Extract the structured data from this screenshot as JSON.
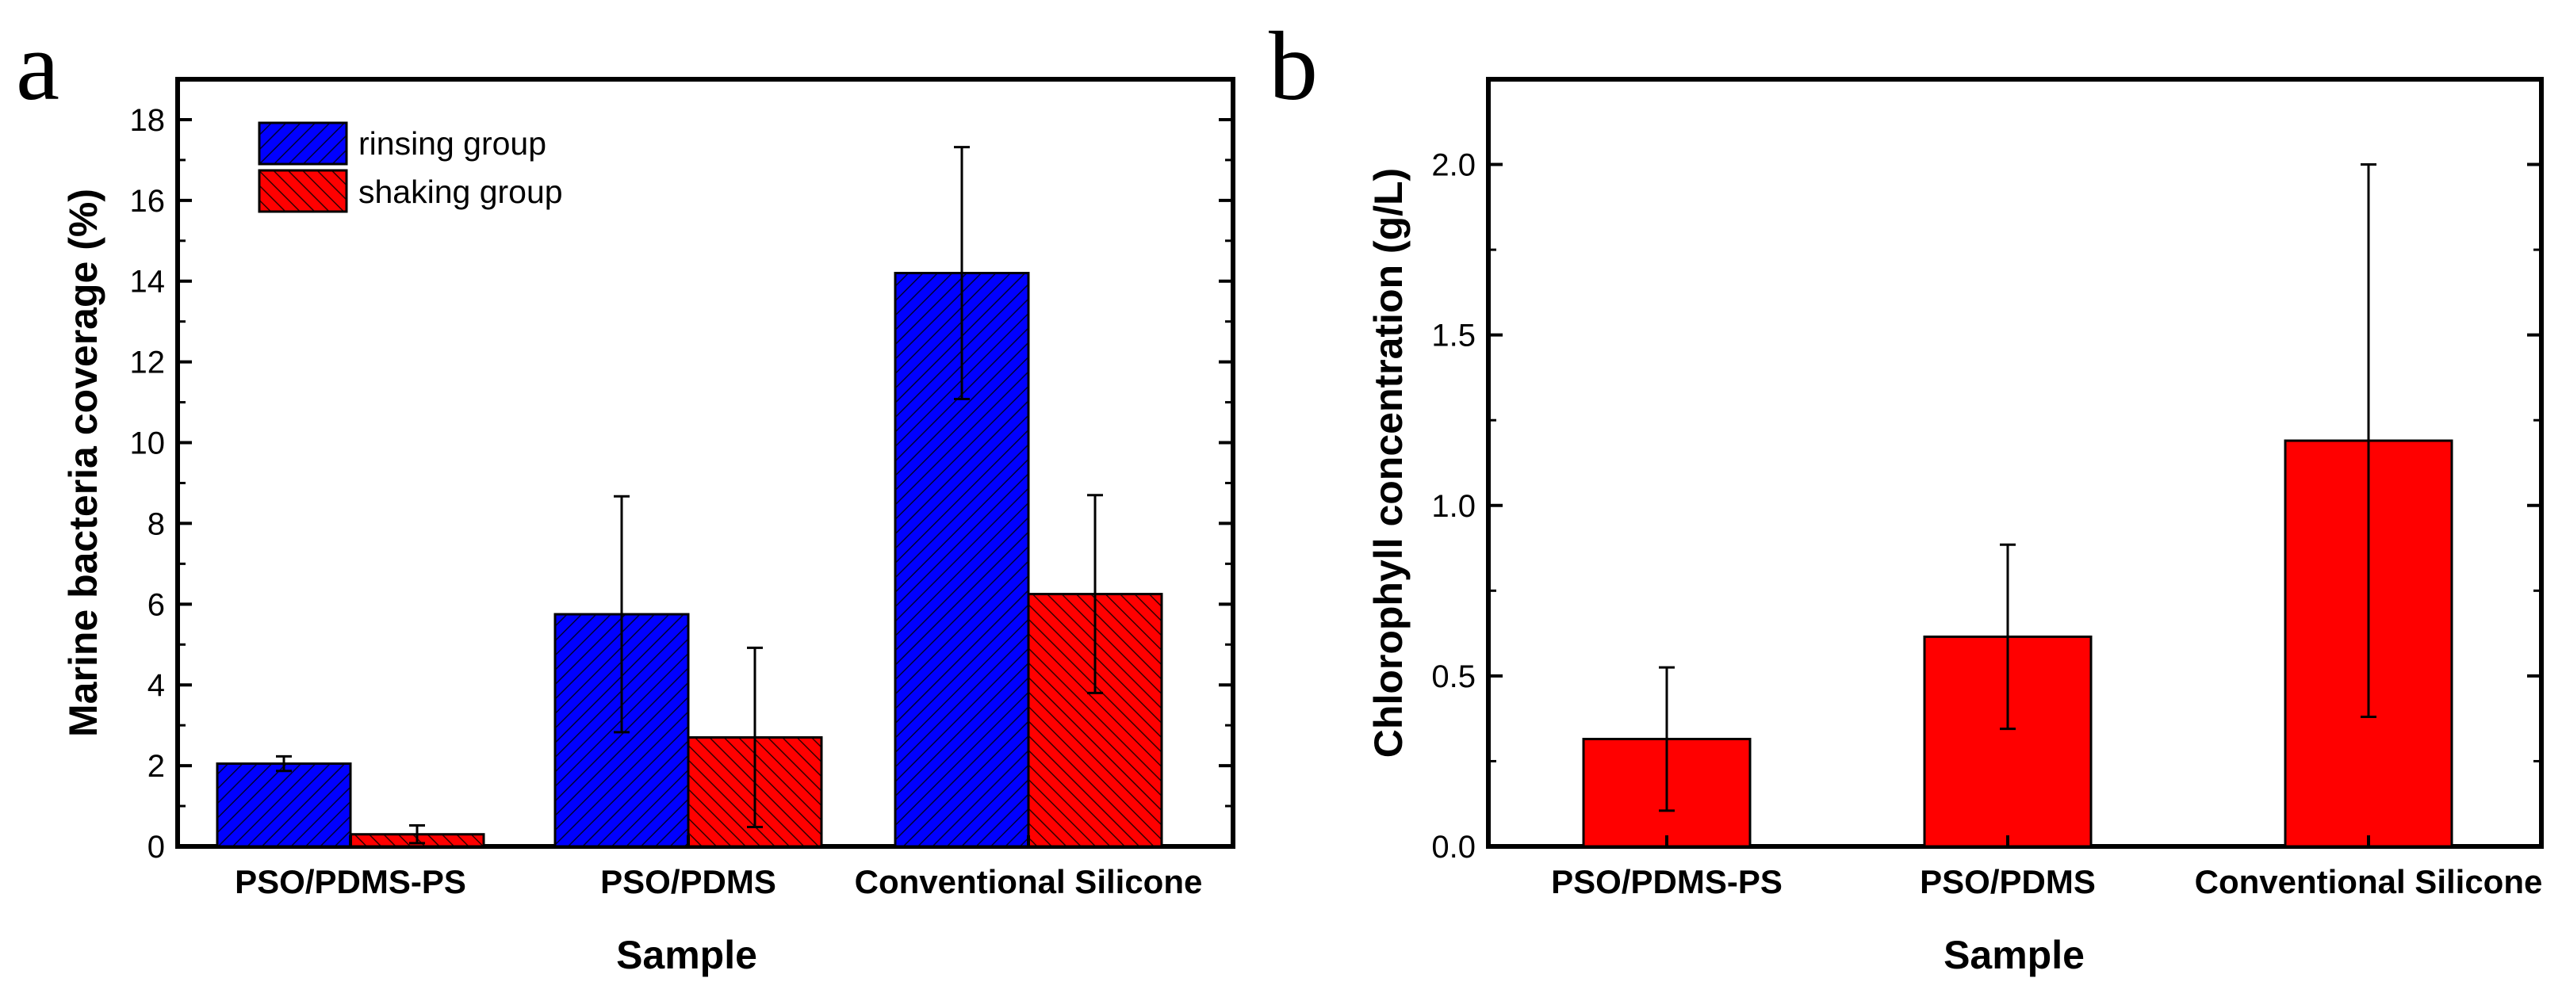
{
  "chart_data": [
    {
      "panel": "a",
      "type": "bar",
      "title": "",
      "xlabel": "Sample",
      "ylabel": "Marine bacteria coverage (%)",
      "categories": [
        "PSO/PDMS-PS",
        "PSO/PDMS",
        "Conventional Silicone"
      ],
      "ylim": [
        0,
        19
      ],
      "yticks": [
        0,
        2,
        4,
        6,
        8,
        10,
        12,
        14,
        16,
        18
      ],
      "legend_position": "top-left",
      "series": [
        {
          "name": "rinsing group",
          "color": "#0000ff",
          "values": [
            2.05,
            5.75,
            14.2
          ],
          "errors": [
            0.18,
            2.92,
            3.12
          ]
        },
        {
          "name": "shaking group",
          "color": "#ff0000",
          "values": [
            0.3,
            2.7,
            6.25
          ],
          "errors": [
            0.22,
            2.22,
            2.45
          ]
        }
      ]
    },
    {
      "panel": "b",
      "type": "bar",
      "title": "",
      "xlabel": "Sample",
      "ylabel": "Chlorophyll concentration (g/L)",
      "categories": [
        "PSO/PDMS-PS",
        "PSO/PDMS",
        "Conventional Silicone"
      ],
      "ylim": [
        0,
        2.25
      ],
      "yticks": [
        0.0,
        0.5,
        1.0,
        1.5,
        2.0
      ],
      "ytick_labels": [
        "0.0",
        "0.5",
        "1.0",
        "1.5",
        "2.0"
      ],
      "series": [
        {
          "name": "Chlorophyll",
          "color": "#ff0000",
          "values": [
            0.315,
            0.615,
            1.19
          ],
          "errors": [
            0.21,
            0.27,
            0.81
          ]
        }
      ]
    }
  ]
}
